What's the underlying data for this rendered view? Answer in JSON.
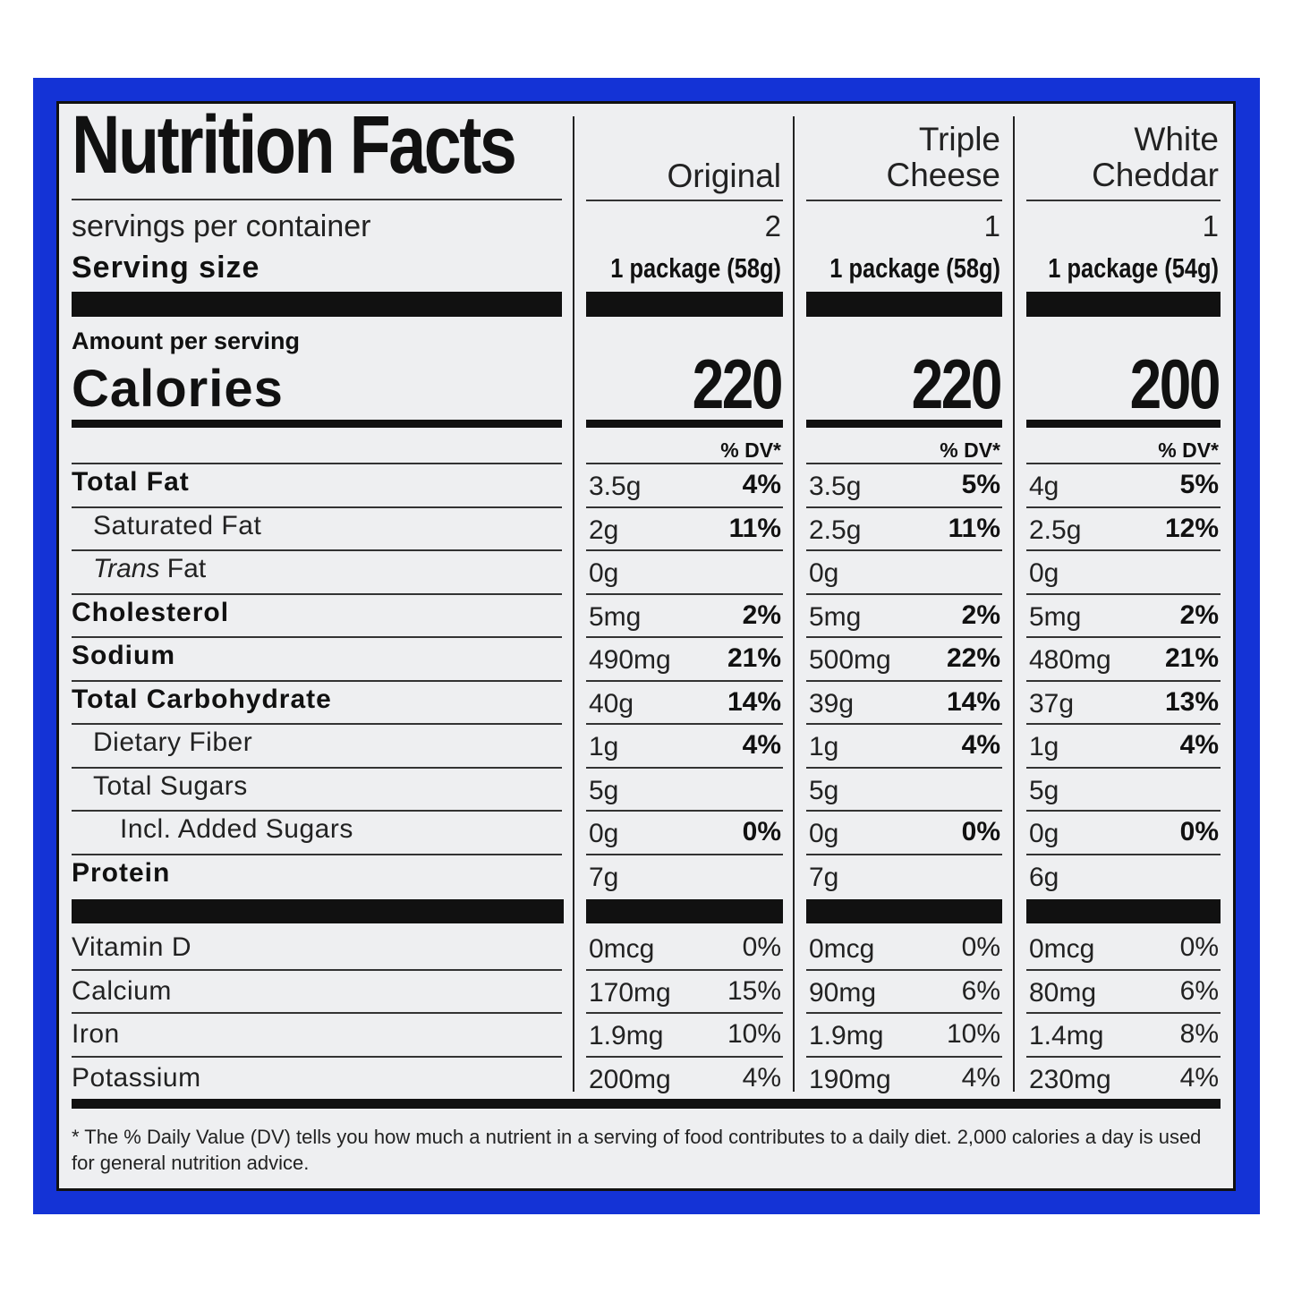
{
  "title": "Nutrition Facts",
  "columns": [
    {
      "name": "Original",
      "servings": "2",
      "serving_size": "1 package (58g)",
      "calories": "220"
    },
    {
      "name": "Triple Cheese",
      "servings": "1",
      "serving_size": "1 package (58g)",
      "calories": "220"
    },
    {
      "name": "White Cheddar",
      "servings": "1",
      "serving_size": "1 package (54g)",
      "calories": "200"
    }
  ],
  "labels": {
    "servings_per_container": "servings per container",
    "serving_size": "Serving size",
    "amount_per_serving": "Amount per serving",
    "calories": "Calories",
    "dv_header": "% DV*",
    "trans_italic": "Trans",
    "trans_rest": " Fat"
  },
  "nutrients": [
    {
      "label": "Total Fat",
      "bold": true,
      "indent": 0,
      "values": [
        [
          "3.5g",
          "4%"
        ],
        [
          "3.5g",
          "5%"
        ],
        [
          "4g",
          "5%"
        ]
      ]
    },
    {
      "label": "Saturated Fat",
      "bold": false,
      "indent": 1,
      "values": [
        [
          "2g",
          "11%"
        ],
        [
          "2.5g",
          "11%"
        ],
        [
          "2.5g",
          "12%"
        ]
      ]
    },
    {
      "label": "Trans Fat",
      "bold": false,
      "indent": 1,
      "values": [
        [
          "0g",
          ""
        ],
        [
          "0g",
          ""
        ],
        [
          "0g",
          ""
        ]
      ]
    },
    {
      "label": "Cholesterol",
      "bold": true,
      "indent": 0,
      "values": [
        [
          "5mg",
          "2%"
        ],
        [
          "5mg",
          "2%"
        ],
        [
          "5mg",
          "2%"
        ]
      ]
    },
    {
      "label": "Sodium",
      "bold": true,
      "indent": 0,
      "values": [
        [
          "490mg",
          "21%"
        ],
        [
          "500mg",
          "22%"
        ],
        [
          "480mg",
          "21%"
        ]
      ]
    },
    {
      "label": "Total Carbohydrate",
      "bold": true,
      "indent": 0,
      "values": [
        [
          "40g",
          "14%"
        ],
        [
          "39g",
          "14%"
        ],
        [
          "37g",
          "13%"
        ]
      ]
    },
    {
      "label": "Dietary Fiber",
      "bold": false,
      "indent": 1,
      "values": [
        [
          "1g",
          "4%"
        ],
        [
          "1g",
          "4%"
        ],
        [
          "1g",
          "4%"
        ]
      ]
    },
    {
      "label": "Total Sugars",
      "bold": false,
      "indent": 1,
      "values": [
        [
          "5g",
          ""
        ],
        [
          "5g",
          ""
        ],
        [
          "5g",
          ""
        ]
      ]
    },
    {
      "label": "Incl. Added Sugars",
      "bold": false,
      "indent": 2,
      "values": [
        [
          "0g",
          "0%"
        ],
        [
          "0g",
          "0%"
        ],
        [
          "0g",
          "0%"
        ]
      ]
    },
    {
      "label": "Protein",
      "bold": true,
      "indent": 0,
      "values": [
        [
          "7g",
          ""
        ],
        [
          "7g",
          ""
        ],
        [
          "6g",
          ""
        ]
      ]
    }
  ],
  "vitamins": [
    {
      "label": "Vitamin D",
      "values": [
        [
          "0mcg",
          "0%"
        ],
        [
          "0mcg",
          "0%"
        ],
        [
          "0mcg",
          "0%"
        ]
      ]
    },
    {
      "label": "Calcium",
      "values": [
        [
          "170mg",
          "15%"
        ],
        [
          "90mg",
          "6%"
        ],
        [
          "80mg",
          "6%"
        ]
      ]
    },
    {
      "label": "Iron",
      "values": [
        [
          "1.9mg",
          "10%"
        ],
        [
          "1.9mg",
          "10%"
        ],
        [
          "1.4mg",
          "8%"
        ]
      ]
    },
    {
      "label": "Potassium",
      "values": [
        [
          "200mg",
          "4%"
        ],
        [
          "190mg",
          "4%"
        ],
        [
          "230mg",
          "4%"
        ]
      ]
    }
  ],
  "footnote": "* The % Daily Value (DV) tells you how much a nutrient in a serving of food contributes to a daily diet. 2,000 calories a day is used for general nutrition advice.",
  "colors": {
    "frame": "#1433d6",
    "panel": "#eeeff1",
    "ink": "#111111"
  }
}
